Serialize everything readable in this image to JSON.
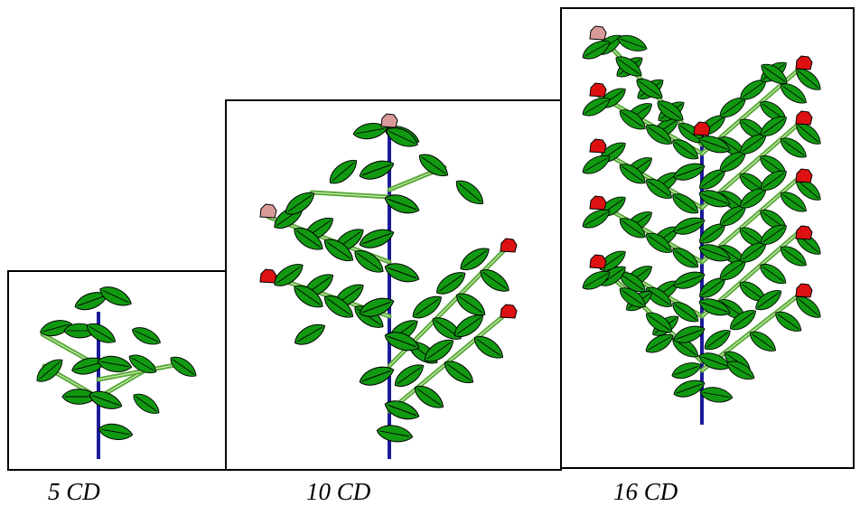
{
  "panels": [
    {
      "id": "panel-5cd",
      "caption": "5 CD"
    },
    {
      "id": "panel-10cd",
      "caption": "10 CD"
    },
    {
      "id": "panel-16cd",
      "caption": "16 CD"
    }
  ],
  "colors": {
    "frame": "#000000",
    "stem": "#1a1a9a",
    "branch": "#5aa83a",
    "branch_highlight": "#c8efb0",
    "leaf": "#119911",
    "leaf_outline": "#000000",
    "flower_open": "#dd1111",
    "flower_bud": "#d99a9a"
  }
}
